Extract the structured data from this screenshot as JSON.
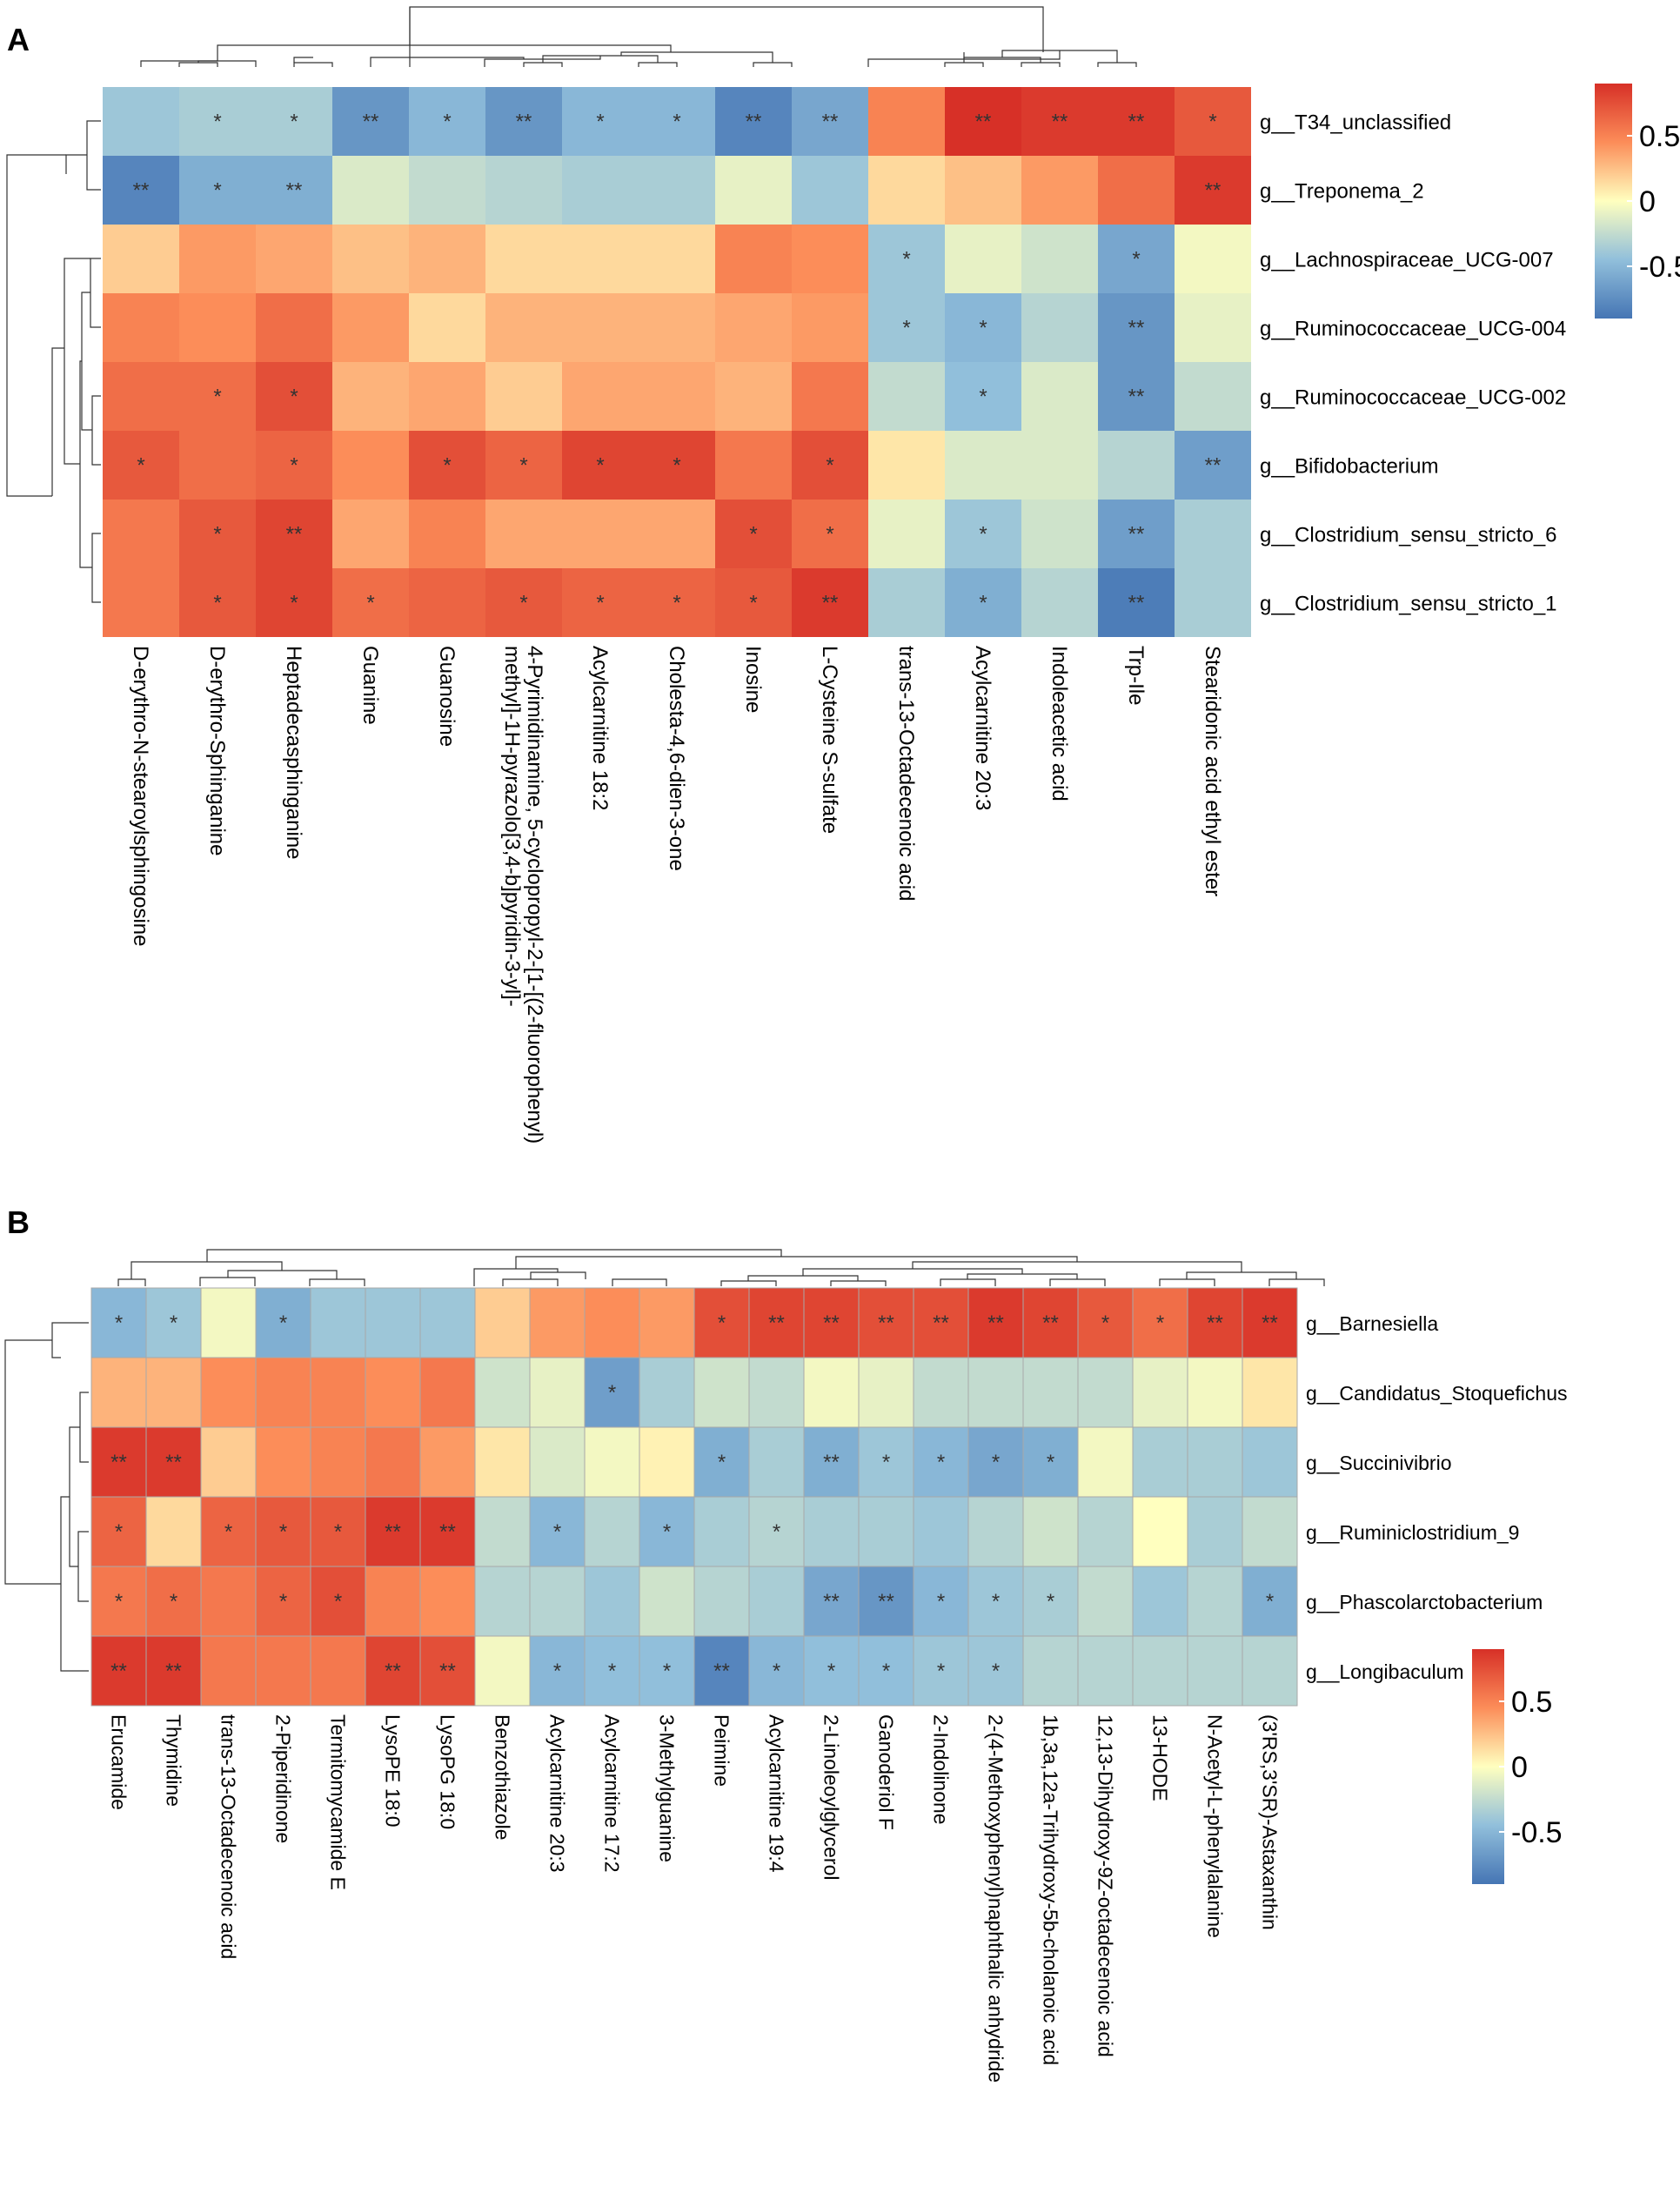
{
  "chart_data": [
    {
      "panel": "A",
      "type": "heatmap",
      "rows": [
        "g__T34_unclassified",
        "g__Treponema_2",
        "g__Lachnospiraceae_UCG-007",
        "g__Ruminococcaceae_UCG-004",
        "g__Ruminococcaceae_UCG-002",
        "g__Bifidobacterium",
        "g__Clostridium_sensu_stricto_6",
        "g__Clostridium_sensu_stricto_1"
      ],
      "columns": [
        "D-erythro-N-stearoylsphingosine",
        "D-erythro-Sphinganine",
        "Heptadecasphinganine",
        "Guanine",
        "Guanosine",
        "4-Pyrimidinamine, 5-cyclopropyl-2-[1-[(2-fluorophenyl) methyl]-1H-pyrazolo[3,4-b]pyridin-3-yl]-",
        "Acylcarnitine 18:2",
        "Cholesta-4,6-dien-3-one",
        "Inosine",
        "L-Cysteine S-sulfate",
        "trans-13-Octadecenoic acid",
        "Acylcarnitine 20:3",
        "Indoleacetic acid",
        "Trp-Ile",
        "Stearidonic acid ethyl ester"
      ],
      "values": [
        [
          -0.4,
          -0.35,
          -0.35,
          -0.7,
          -0.5,
          -0.7,
          -0.5,
          -0.5,
          -0.8,
          -0.6,
          0.5,
          0.9,
          0.85,
          0.85,
          0.7
        ],
        [
          -0.8,
          -0.55,
          -0.55,
          -0.15,
          -0.25,
          -0.3,
          -0.35,
          -0.35,
          -0.1,
          -0.4,
          0.15,
          0.25,
          0.4,
          0.6,
          0.85
        ],
        [
          0.2,
          0.4,
          0.35,
          0.25,
          0.3,
          0.15,
          0.15,
          0.15,
          0.5,
          0.45,
          -0.4,
          -0.1,
          -0.2,
          -0.6,
          -0.05
        ],
        [
          0.5,
          0.45,
          0.6,
          0.4,
          0.15,
          0.3,
          0.3,
          0.3,
          0.35,
          0.4,
          -0.4,
          -0.5,
          -0.3,
          -0.7,
          -0.1
        ],
        [
          0.6,
          0.6,
          0.75,
          0.3,
          0.35,
          0.2,
          0.35,
          0.35,
          0.3,
          0.55,
          -0.25,
          -0.45,
          -0.15,
          -0.7,
          -0.25
        ],
        [
          0.7,
          0.6,
          0.65,
          0.45,
          0.75,
          0.65,
          0.8,
          0.8,
          0.55,
          0.75,
          0.1,
          -0.15,
          -0.15,
          -0.3,
          -0.65
        ],
        [
          0.55,
          0.7,
          0.8,
          0.35,
          0.5,
          0.35,
          0.35,
          0.35,
          0.75,
          0.6,
          -0.1,
          -0.4,
          -0.2,
          -0.65,
          -0.35
        ],
        [
          0.55,
          0.7,
          0.8,
          0.6,
          0.65,
          0.7,
          0.65,
          0.65,
          0.7,
          0.85,
          -0.35,
          -0.55,
          -0.3,
          -0.85,
          -0.35
        ]
      ],
      "significance": [
        [
          "",
          "*",
          "*",
          "**",
          "*",
          "**",
          "*",
          "*",
          "**",
          "**",
          "",
          "**",
          "**",
          "**",
          "*"
        ],
        [
          "**",
          "*",
          "**",
          "",
          "",
          "",
          "",
          "",
          "",
          "",
          "",
          "",
          "",
          "",
          "**"
        ],
        [
          "",
          "",
          "",
          "",
          "",
          "",
          "",
          "",
          "",
          "",
          "*",
          "",
          "",
          "*",
          ""
        ],
        [
          "",
          "",
          "",
          "",
          "",
          "",
          "",
          "",
          "",
          "",
          "*",
          "*",
          "",
          "**",
          ""
        ],
        [
          "",
          "*",
          "*",
          "",
          "",
          "",
          "",
          "",
          "",
          "",
          "",
          "*",
          "",
          "**",
          ""
        ],
        [
          "*",
          "",
          "*",
          "",
          "*",
          "*",
          "*",
          "*",
          "",
          "*",
          "",
          "",
          "",
          "",
          "**"
        ],
        [
          "",
          "*",
          "**",
          "",
          "",
          "",
          "",
          "",
          "*",
          "*",
          "",
          "*",
          "",
          "**",
          ""
        ],
        [
          "",
          "*",
          "*",
          "*",
          "",
          "*",
          "*",
          "*",
          "*",
          "**",
          "",
          "*",
          "",
          "**",
          ""
        ]
      ],
      "colorbar": {
        "ticks": [
          "0.5",
          "0",
          "-0.5"
        ],
        "range": [
          -0.9,
          0.9
        ]
      }
    },
    {
      "panel": "B",
      "type": "heatmap",
      "rows": [
        "g__Barnesiella",
        "g__Candidatus_Stoquefichus",
        "g__Succinivibrio",
        "g__Ruminiclostridium_9",
        "g__Phascolarctobacterium",
        "g__Longibaculum"
      ],
      "columns": [
        "Erucamide",
        "Thymidine",
        "trans-13-Octadecenoic acid",
        "2-Piperidinone",
        "Termitomycamide E",
        "LysoPE 18:0",
        "LysoPG 18:0",
        "Benzothiazole",
        "Acylcarnitine 20:3",
        "Acylcarnitine 17:2",
        "3-Methylguanine",
        "Peimine",
        "Acylcarnitine 19:4",
        "2-Linoleoylglycerol",
        "Ganoderiol F",
        "2-Indolinone",
        "2-(4-Methoxyphenyl)naphthalic anhydride",
        "1b,3a,12a-Trihydroxy-5b-cholanoic acid",
        "12,13-Dihydroxy-9Z-octadecenoic acid",
        "13-HODE",
        "N-Acetyl-L-phenylalanine",
        "(3'RS,3'SR)-Astaxanthin"
      ],
      "values": [
        [
          -0.5,
          -0.4,
          -0.05,
          -0.55,
          -0.4,
          -0.4,
          -0.4,
          0.2,
          0.4,
          0.45,
          0.4,
          0.75,
          0.8,
          0.8,
          0.75,
          0.75,
          0.85,
          0.8,
          0.7,
          0.6,
          0.8,
          0.85
        ],
        [
          0.3,
          0.3,
          0.45,
          0.5,
          0.5,
          0.45,
          0.55,
          -0.2,
          -0.1,
          -0.65,
          -0.35,
          -0.2,
          -0.25,
          -0.05,
          -0.1,
          -0.25,
          -0.25,
          -0.25,
          -0.25,
          -0.1,
          -0.05,
          0.1
        ],
        [
          0.85,
          0.85,
          0.2,
          0.45,
          0.5,
          0.55,
          0.4,
          0.1,
          -0.15,
          -0.05,
          0.05,
          -0.55,
          -0.35,
          -0.55,
          -0.4,
          -0.5,
          -0.6,
          -0.55,
          -0.05,
          -0.35,
          -0.35,
          -0.4
        ],
        [
          0.65,
          0.15,
          0.65,
          0.7,
          0.7,
          0.85,
          0.85,
          -0.25,
          -0.5,
          -0.3,
          -0.5,
          -0.35,
          -0.3,
          -0.35,
          -0.35,
          -0.4,
          -0.3,
          -0.2,
          -0.3,
          0.0,
          -0.35,
          -0.25
        ],
        [
          0.55,
          0.6,
          0.55,
          0.65,
          0.75,
          0.5,
          0.45,
          -0.3,
          -0.3,
          -0.4,
          -0.2,
          -0.3,
          -0.35,
          -0.6,
          -0.7,
          -0.5,
          -0.4,
          -0.35,
          -0.25,
          -0.4,
          -0.3,
          -0.55
        ],
        [
          0.85,
          0.85,
          0.55,
          0.55,
          0.55,
          0.8,
          0.75,
          -0.05,
          -0.5,
          -0.45,
          -0.45,
          -0.8,
          -0.5,
          -0.45,
          -0.45,
          -0.4,
          -0.4,
          -0.3,
          -0.3,
          -0.3,
          -0.3,
          -0.3
        ]
      ],
      "significance": [
        [
          "*",
          "*",
          "",
          "*",
          "",
          "",
          "",
          "",
          "",
          "",
          "",
          "*",
          "**",
          "**",
          "**",
          "**",
          "**",
          "**",
          "*",
          "*",
          "**",
          "**"
        ],
        [
          "",
          "",
          "",
          "",
          "",
          "",
          "",
          "",
          "",
          "*",
          "",
          "",
          "",
          "",
          "",
          "",
          "",
          "",
          "",
          "",
          "",
          ""
        ],
        [
          "**",
          "**",
          "",
          "",
          "",
          "",
          "",
          "",
          "",
          "",
          "",
          "*",
          "",
          "**",
          "*",
          "*",
          "*",
          "*",
          "",
          "",
          "",
          ""
        ],
        [
          "*",
          "",
          "*",
          "*",
          "*",
          "**",
          "**",
          "",
          "*",
          "",
          "*",
          "",
          "*",
          "",
          "",
          "",
          "",
          "",
          "",
          "",
          "",
          ""
        ],
        [
          "*",
          "*",
          "",
          "*",
          "*",
          "",
          "",
          "",
          "",
          "",
          "",
          "",
          "",
          "**",
          "**",
          "*",
          "*",
          "*",
          "",
          "",
          "",
          "*"
        ],
        [
          "**",
          "**",
          "",
          "",
          "",
          "**",
          "**",
          "",
          "*",
          "*",
          "*",
          "**",
          "*",
          "*",
          "*",
          "*",
          "*",
          "",
          "",
          "",
          "",
          ""
        ]
      ],
      "colorbar": {
        "ticks": [
          "0.5",
          "0",
          "-0.5"
        ],
        "range": [
          -0.9,
          0.9
        ]
      }
    }
  ],
  "panels": {
    "a_label": "A",
    "b_label": "B"
  }
}
